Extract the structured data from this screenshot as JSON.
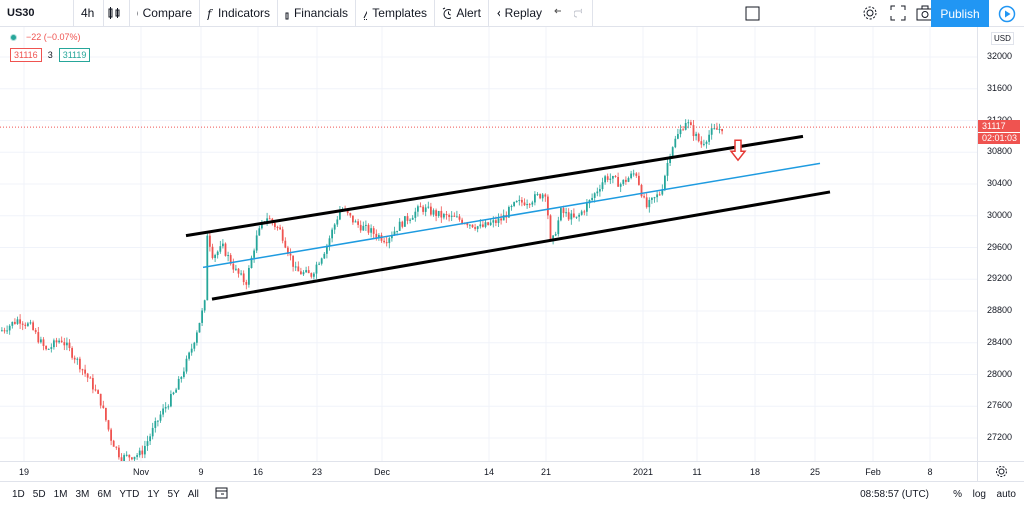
{
  "toolbar": {
    "symbol": "US30",
    "interval": "4h",
    "compare": "Compare",
    "indicators": "Indicators",
    "financials": "Financials",
    "templates": "Templates",
    "alert": "Alert",
    "replay": "Replay",
    "publish": "Publish"
  },
  "legend": {
    "change": "−22 (−0.07%)",
    "bid": "31116",
    "spread": "3",
    "ask": "31119"
  },
  "price_axis": {
    "currency": "USD",
    "ticks": [
      "32000",
      "31600",
      "31200",
      "30800",
      "30400",
      "30000",
      "29600",
      "29200",
      "28800",
      "28400",
      "28000",
      "27600",
      "27200"
    ],
    "last_price": "31117",
    "countdown": "02:01:03"
  },
  "time_axis": {
    "ticks": [
      "19",
      "Nov",
      "9",
      "16",
      "23",
      "Dec",
      "14",
      "21",
      "2021",
      "11",
      "18",
      "25",
      "Feb",
      "8"
    ]
  },
  "bottom_bar": {
    "ranges": [
      "1D",
      "5D",
      "1M",
      "3M",
      "6M",
      "YTD",
      "1Y",
      "5Y",
      "All"
    ],
    "clock": "08:58:57 (UTC)",
    "percent": "%",
    "log": "log",
    "auto": "auto"
  },
  "chart_data": {
    "type": "candlestick",
    "symbol": "US30",
    "interval": "4h",
    "ylim": [
      26950,
      32200
    ],
    "x_axis_labels": [
      "19",
      "Nov",
      "9",
      "16",
      "23",
      "Dec",
      "14",
      "21",
      "2021",
      "11",
      "18",
      "25",
      "Feb",
      "8"
    ],
    "price_path": [
      [
        0,
        28550
      ],
      [
        18,
        28700
      ],
      [
        30,
        28600
      ],
      [
        45,
        28300
      ],
      [
        60,
        28450
      ],
      [
        75,
        28200
      ],
      [
        90,
        27900
      ],
      [
        100,
        27650
      ],
      [
        110,
        27200
      ],
      [
        120,
        26950
      ],
      [
        140,
        27000
      ],
      [
        160,
        27500
      ],
      [
        175,
        27800
      ],
      [
        190,
        28300
      ],
      [
        204,
        28900
      ],
      [
        206,
        29800
      ],
      [
        212,
        29500
      ],
      [
        222,
        29600
      ],
      [
        235,
        29300
      ],
      [
        245,
        29150
      ],
      [
        255,
        29700
      ],
      [
        265,
        30000
      ],
      [
        280,
        29800
      ],
      [
        295,
        29300
      ],
      [
        310,
        29250
      ],
      [
        325,
        29600
      ],
      [
        340,
        30100
      ],
      [
        355,
        29900
      ],
      [
        370,
        29800
      ],
      [
        385,
        29700
      ],
      [
        400,
        29900
      ],
      [
        420,
        30100
      ],
      [
        440,
        30000
      ],
      [
        460,
        29950
      ],
      [
        480,
        29850
      ],
      [
        500,
        29950
      ],
      [
        515,
        30150
      ],
      [
        530,
        30200
      ],
      [
        545,
        30300
      ],
      [
        550,
        29600
      ],
      [
        560,
        30050
      ],
      [
        575,
        29950
      ],
      [
        590,
        30200
      ],
      [
        605,
        30500
      ],
      [
        620,
        30400
      ],
      [
        635,
        30550
      ],
      [
        645,
        30100
      ],
      [
        660,
        30300
      ],
      [
        670,
        30850
      ],
      [
        685,
        31200
      ],
      [
        700,
        30900
      ],
      [
        710,
        31050
      ],
      [
        722,
        31117
      ]
    ],
    "annotations": [
      {
        "type": "trendline",
        "color": "#000000",
        "from": [
          186,
          29750
        ],
        "to": [
          803,
          31000
        ]
      },
      {
        "type": "trendline",
        "color": "#000000",
        "from": [
          212,
          28950
        ],
        "to": [
          830,
          30300
        ]
      },
      {
        "type": "trendline",
        "color": "#1e9be0",
        "from": [
          203,
          29350
        ],
        "to": [
          820,
          30660
        ]
      },
      {
        "type": "arrow-down",
        "color": "#e53935",
        "at": [
          738,
          30700
        ]
      }
    ]
  }
}
